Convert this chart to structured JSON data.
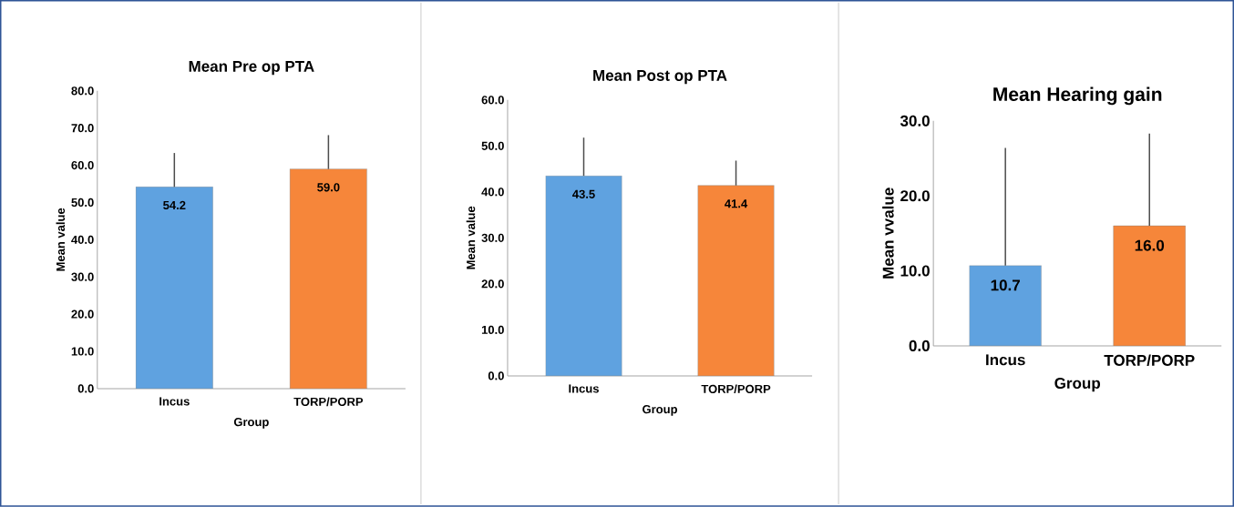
{
  "chart_data": [
    {
      "type": "bar",
      "title": "Mean Pre op PTA",
      "xlabel": "Group",
      "ylabel": "Mean value",
      "categories": [
        "Incus",
        "TORP/PORP"
      ],
      "values": [
        54.2,
        59.0
      ],
      "colors": [
        "#5fa2e0",
        "#f6863a"
      ],
      "errors": [
        [
          54.2,
          63.3
        ],
        [
          59.0,
          68.1
        ]
      ],
      "value_labels": [
        "54.2",
        "59.0"
      ],
      "ylim": [
        0,
        80
      ],
      "yticks": [
        {
          "value": 0,
          "label": "0.0"
        },
        {
          "value": 10,
          "label": "10.0"
        },
        {
          "value": 20,
          "label": "20.0"
        },
        {
          "value": 30,
          "label": "30.0"
        },
        {
          "value": 40,
          "label": "40.0"
        },
        {
          "value": 50,
          "label": "50.0"
        },
        {
          "value": 60,
          "label": "60.0"
        },
        {
          "value": 70,
          "label": "70.0"
        },
        {
          "value": 80,
          "label": "80.0"
        }
      ]
    },
    {
      "type": "bar",
      "title": "Mean Post op PTA",
      "xlabel": "Group",
      "ylabel": "Mean value",
      "categories": [
        "Incus",
        "TORP/PORP"
      ],
      "values": [
        43.5,
        41.4
      ],
      "colors": [
        "#5fa2e0",
        "#f6863a"
      ],
      "errors": [
        [
          43.5,
          51.8
        ],
        [
          41.4,
          46.8
        ]
      ],
      "value_labels": [
        "43.5",
        "41.4"
      ],
      "ylim": [
        0,
        60
      ],
      "yticks": [
        {
          "value": 0,
          "label": "0.0"
        },
        {
          "value": 10,
          "label": "10.0"
        },
        {
          "value": 20,
          "label": "20.0"
        },
        {
          "value": 30,
          "label": "30.0"
        },
        {
          "value": 40,
          "label": "40.0"
        },
        {
          "value": 50,
          "label": "50.0"
        },
        {
          "value": 60,
          "label": "60.0"
        }
      ]
    },
    {
      "type": "bar",
      "title": "Mean Hearing gain",
      "xlabel": "Group",
      "ylabel": "Mean vvalue",
      "categories": [
        "Incus",
        "TORP/PORP"
      ],
      "values": [
        10.7,
        16.0
      ],
      "colors": [
        "#5fa2e0",
        "#f6863a"
      ],
      "errors": [
        [
          10.7,
          26.4
        ],
        [
          16.0,
          28.3
        ]
      ],
      "value_labels": [
        "10.7",
        "16.0"
      ],
      "ylim": [
        0,
        30
      ],
      "yticks": [
        {
          "value": 0,
          "label": "0.0"
        },
        {
          "value": 10,
          "label": "10.0"
        },
        {
          "value": 20,
          "label": "20.0"
        },
        {
          "value": 30,
          "label": "30.0"
        }
      ]
    }
  ]
}
